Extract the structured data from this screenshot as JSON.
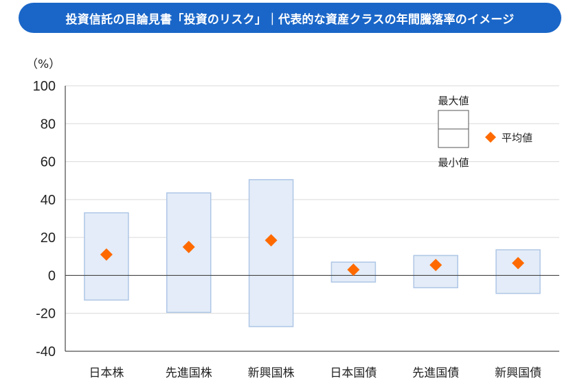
{
  "title": "投資信託の目論見書「投資のリスク」｜代表的な資産クラスの年間騰落率のイメージ",
  "colors": {
    "banner": "#1a66c8",
    "box_fill": "#e3ecf8",
    "box_stroke": "#aec6e6",
    "marker": "#ff6a00",
    "zero_line": "#444444",
    "grid": "#d9d9d9"
  },
  "chart_data": {
    "type": "range-bar",
    "unit_label": "（%）",
    "ylim": [
      -40,
      100
    ],
    "yticks": [
      100,
      80,
      60,
      40,
      20,
      0,
      -20,
      -40
    ],
    "grid": true,
    "categories": [
      "日本株",
      "先進国株",
      "新興国株",
      "日本国債",
      "先進国債",
      "新興国債"
    ],
    "max": [
      33,
      43.5,
      50.5,
      7,
      10.5,
      13.5
    ],
    "min": [
      -13,
      -19.5,
      -27,
      -3.5,
      -6.5,
      -9.5
    ],
    "average": [
      11,
      15,
      18.5,
      3,
      5.5,
      6.5
    ],
    "legend": {
      "max_label": "最大値",
      "min_label": "最小値",
      "avg_label": "平均値"
    }
  }
}
